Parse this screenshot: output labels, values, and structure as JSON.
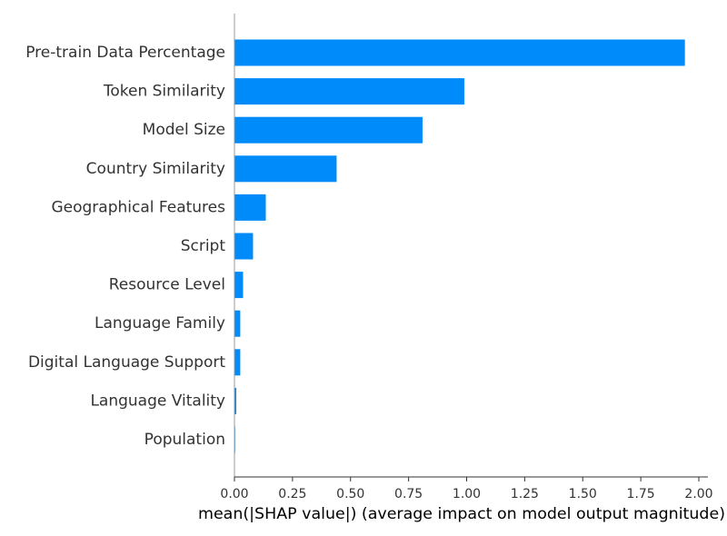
{
  "chart_data": {
    "type": "bar",
    "orientation": "horizontal",
    "categories": [
      "Pre-train Data Percentage",
      "Token Similarity",
      "Model Size",
      "Country Similarity",
      "Geographical Features",
      "Script",
      "Resource Level",
      "Language Family",
      "Digital Language Support",
      "Language Vitality",
      "Population"
    ],
    "values": [
      1.94,
      0.99,
      0.81,
      0.44,
      0.135,
      0.08,
      0.037,
      0.025,
      0.025,
      0.008,
      0.003
    ],
    "xlabel": "mean(|SHAP value|) (average impact on model output magnitude)",
    "ylabel": "",
    "title": "",
    "xlim": [
      0,
      2.04
    ],
    "xticks": [
      "0.00",
      "0.25",
      "0.50",
      "0.75",
      "1.00",
      "1.25",
      "1.50",
      "1.75",
      "2.00"
    ],
    "grid": false,
    "bar_color": "#008bfb",
    "axis_color": "#333333"
  }
}
